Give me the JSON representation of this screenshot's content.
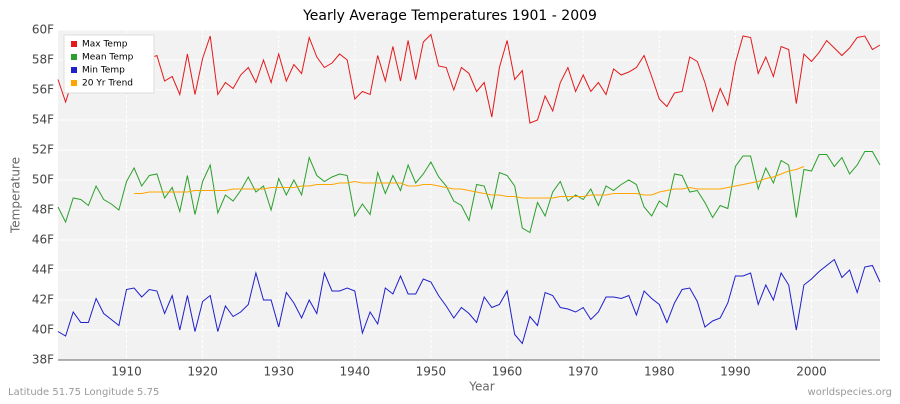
{
  "chart_data": {
    "type": "line",
    "title": "Yearly Average Temperatures 1901 - 2009",
    "x_label": "Year",
    "y_label": "Temperature",
    "footer_left": "Latitude 51.75 Longitude 5.75",
    "footer_right": "worldspecies.org",
    "legend": "top-left",
    "grid": true,
    "xlim": [
      1901,
      2009
    ],
    "xticks": [
      1910,
      1920,
      1930,
      1940,
      1950,
      1960,
      1970,
      1980,
      1990,
      2000
    ],
    "ylim": [
      38,
      60
    ],
    "yticks": [
      {
        "value": 38,
        "label": "38F"
      },
      {
        "value": 40,
        "label": "40F"
      },
      {
        "value": 42,
        "label": "42F"
      },
      {
        "value": 44,
        "label": "44F"
      },
      {
        "value": 46,
        "label": "46F"
      },
      {
        "value": 48,
        "label": "48F"
      },
      {
        "value": 50,
        "label": "50F"
      },
      {
        "value": 52,
        "label": "52F"
      },
      {
        "value": 54,
        "label": "54F"
      },
      {
        "value": 56,
        "label": "56F"
      },
      {
        "value": 58,
        "label": "58F"
      },
      {
        "value": 60,
        "label": "60F"
      }
    ],
    "x": [
      1901,
      1902,
      1903,
      1904,
      1905,
      1906,
      1907,
      1908,
      1909,
      1910,
      1911,
      1912,
      1913,
      1914,
      1915,
      1916,
      1917,
      1918,
      1919,
      1920,
      1921,
      1922,
      1923,
      1924,
      1925,
      1926,
      1927,
      1928,
      1929,
      1930,
      1931,
      1932,
      1933,
      1934,
      1935,
      1936,
      1937,
      1938,
      1939,
      1940,
      1941,
      1942,
      1943,
      1944,
      1945,
      1946,
      1947,
      1948,
      1949,
      1950,
      1951,
      1952,
      1953,
      1954,
      1955,
      1956,
      1957,
      1958,
      1959,
      1960,
      1961,
      1962,
      1963,
      1964,
      1965,
      1966,
      1967,
      1968,
      1969,
      1970,
      1971,
      1972,
      1973,
      1974,
      1975,
      1976,
      1977,
      1978,
      1979,
      1980,
      1981,
      1982,
      1983,
      1984,
      1985,
      1986,
      1987,
      1988,
      1989,
      1990,
      1991,
      1992,
      1993,
      1994,
      1995,
      1996,
      1997,
      1998,
      1999,
      2000,
      2001,
      2002,
      2003,
      2004,
      2005,
      2006,
      2007,
      2008,
      2009
    ],
    "series": [
      {
        "name": "Max Temp",
        "color": "#e41a1c",
        "values": [
          56.7,
          55.2,
          56.8,
          57.5,
          57.0,
          58.2,
          57.2,
          56.9,
          56.2,
          55.8,
          57.5,
          58.0,
          58.1,
          58.3,
          56.6,
          56.9,
          55.7,
          58.4,
          55.7,
          58.1,
          59.6,
          55.7,
          56.5,
          56.1,
          57.0,
          57.5,
          56.5,
          58.0,
          56.5,
          58.4,
          56.6,
          57.7,
          57.1,
          59.5,
          58.2,
          57.5,
          57.8,
          58.4,
          58.0,
          55.4,
          55.9,
          55.7,
          58.3,
          56.6,
          58.9,
          56.6,
          59.3,
          56.7,
          59.2,
          59.7,
          57.6,
          57.5,
          56.0,
          57.5,
          57.1,
          55.9,
          56.5,
          54.2,
          57.5,
          59.3,
          56.7,
          57.3,
          53.8,
          54.0,
          55.6,
          54.6,
          56.5,
          57.5,
          55.9,
          57.0,
          55.9,
          56.5,
          55.7,
          57.4,
          57.0,
          57.2,
          57.5,
          58.3,
          56.9,
          55.4,
          54.9,
          55.8,
          55.9,
          58.2,
          57.9,
          56.5,
          54.6,
          56.1,
          55.0,
          57.8,
          59.6,
          59.5,
          57.1,
          58.2,
          56.9,
          58.9,
          58.7,
          55.1,
          58.4,
          57.9,
          58.5,
          59.3,
          58.8,
          58.3,
          58.8,
          59.5,
          59.6,
          58.7,
          59.0
        ]
      },
      {
        "name": "Mean Temp",
        "color": "#2ca02c",
        "values": [
          48.2,
          47.2,
          48.8,
          48.7,
          48.3,
          49.6,
          48.7,
          48.4,
          48.0,
          49.9,
          50.8,
          49.6,
          50.3,
          50.4,
          48.8,
          49.5,
          47.9,
          50.3,
          47.7,
          49.9,
          51.0,
          47.8,
          49.0,
          48.6,
          49.3,
          50.2,
          49.2,
          49.6,
          48.0,
          50.1,
          49.0,
          50.0,
          49.0,
          51.5,
          50.3,
          49.9,
          50.2,
          50.4,
          50.3,
          47.6,
          48.4,
          47.7,
          50.5,
          49.1,
          50.3,
          49.3,
          51.0,
          49.8,
          50.4,
          51.2,
          50.2,
          49.6,
          48.6,
          48.3,
          47.3,
          49.7,
          49.6,
          48.1,
          50.5,
          50.3,
          49.6,
          46.8,
          46.5,
          48.5,
          47.6,
          49.2,
          49.9,
          48.6,
          49.0,
          48.7,
          49.4,
          48.3,
          49.6,
          49.3,
          49.7,
          50.0,
          49.7,
          48.2,
          47.6,
          48.6,
          48.2,
          50.4,
          50.3,
          49.2,
          49.3,
          48.5,
          47.5,
          48.3,
          48.1,
          50.9,
          51.6,
          51.6,
          49.4,
          50.8,
          49.8,
          51.3,
          51.0,
          47.5,
          50.7,
          50.6,
          51.7,
          51.7,
          50.9,
          51.5,
          50.4,
          51.0,
          51.9,
          51.9,
          51.0
        ]
      },
      {
        "name": "Min Temp",
        "color": "#1f1fcc",
        "values": [
          39.9,
          39.6,
          41.2,
          40.5,
          40.5,
          42.1,
          41.1,
          40.7,
          40.3,
          42.7,
          42.8,
          42.2,
          42.7,
          42.6,
          41.1,
          42.3,
          40.0,
          42.3,
          39.9,
          41.9,
          42.3,
          39.9,
          41.6,
          40.9,
          41.2,
          41.7,
          43.8,
          42.0,
          42.0,
          40.2,
          42.5,
          41.8,
          40.8,
          42.0,
          41.1,
          43.8,
          42.6,
          42.6,
          42.8,
          42.6,
          39.8,
          41.2,
          40.4,
          42.8,
          42.4,
          43.6,
          42.4,
          42.4,
          43.4,
          43.2,
          42.3,
          41.6,
          40.8,
          41.5,
          41.1,
          40.5,
          42.2,
          41.5,
          41.7,
          42.6,
          39.7,
          39.1,
          40.9,
          40.3,
          42.5,
          42.3,
          41.5,
          41.4,
          41.2,
          41.5,
          40.7,
          41.2,
          42.2,
          42.2,
          42.1,
          42.3,
          41.0,
          42.6,
          42.1,
          41.7,
          40.5,
          41.8,
          42.7,
          42.8,
          41.9,
          40.2,
          40.6,
          40.8,
          41.8,
          43.6,
          43.6,
          43.8,
          41.7,
          43.0,
          42.0,
          43.8,
          43.0,
          40.0,
          43.0,
          43.4,
          43.9,
          44.3,
          44.7,
          43.5,
          44.0,
          42.5,
          44.2,
          44.3,
          43.2
        ]
      },
      {
        "name": "20 Yr Trend",
        "color": "#ffa500",
        "values": [
          null,
          null,
          null,
          null,
          null,
          null,
          null,
          null,
          null,
          null,
          49.1,
          49.1,
          49.2,
          49.2,
          49.2,
          49.2,
          49.2,
          49.2,
          49.3,
          49.3,
          49.3,
          49.3,
          49.3,
          49.4,
          49.4,
          49.4,
          49.4,
          49.4,
          49.5,
          49.5,
          49.5,
          49.5,
          49.6,
          49.6,
          49.7,
          49.7,
          49.7,
          49.8,
          49.8,
          49.9,
          49.8,
          49.8,
          49.8,
          49.8,
          49.8,
          49.8,
          49.6,
          49.6,
          49.7,
          49.7,
          49.6,
          49.5,
          49.4,
          49.4,
          49.3,
          49.2,
          49.1,
          49.0,
          49.0,
          48.9,
          48.9,
          48.8,
          48.8,
          48.8,
          48.8,
          48.8,
          48.9,
          48.9,
          48.9,
          48.9,
          49.0,
          49.0,
          49.0,
          49.1,
          49.1,
          49.1,
          49.1,
          49.0,
          49.0,
          49.2,
          49.3,
          49.4,
          49.4,
          49.5,
          49.4,
          49.4,
          49.4,
          49.4,
          49.5,
          49.6,
          49.7,
          49.8,
          49.9,
          50.1,
          50.2,
          50.4,
          50.6,
          50.7,
          50.9,
          null,
          null,
          null,
          null,
          null,
          null,
          null,
          null,
          null,
          null
        ]
      }
    ]
  }
}
